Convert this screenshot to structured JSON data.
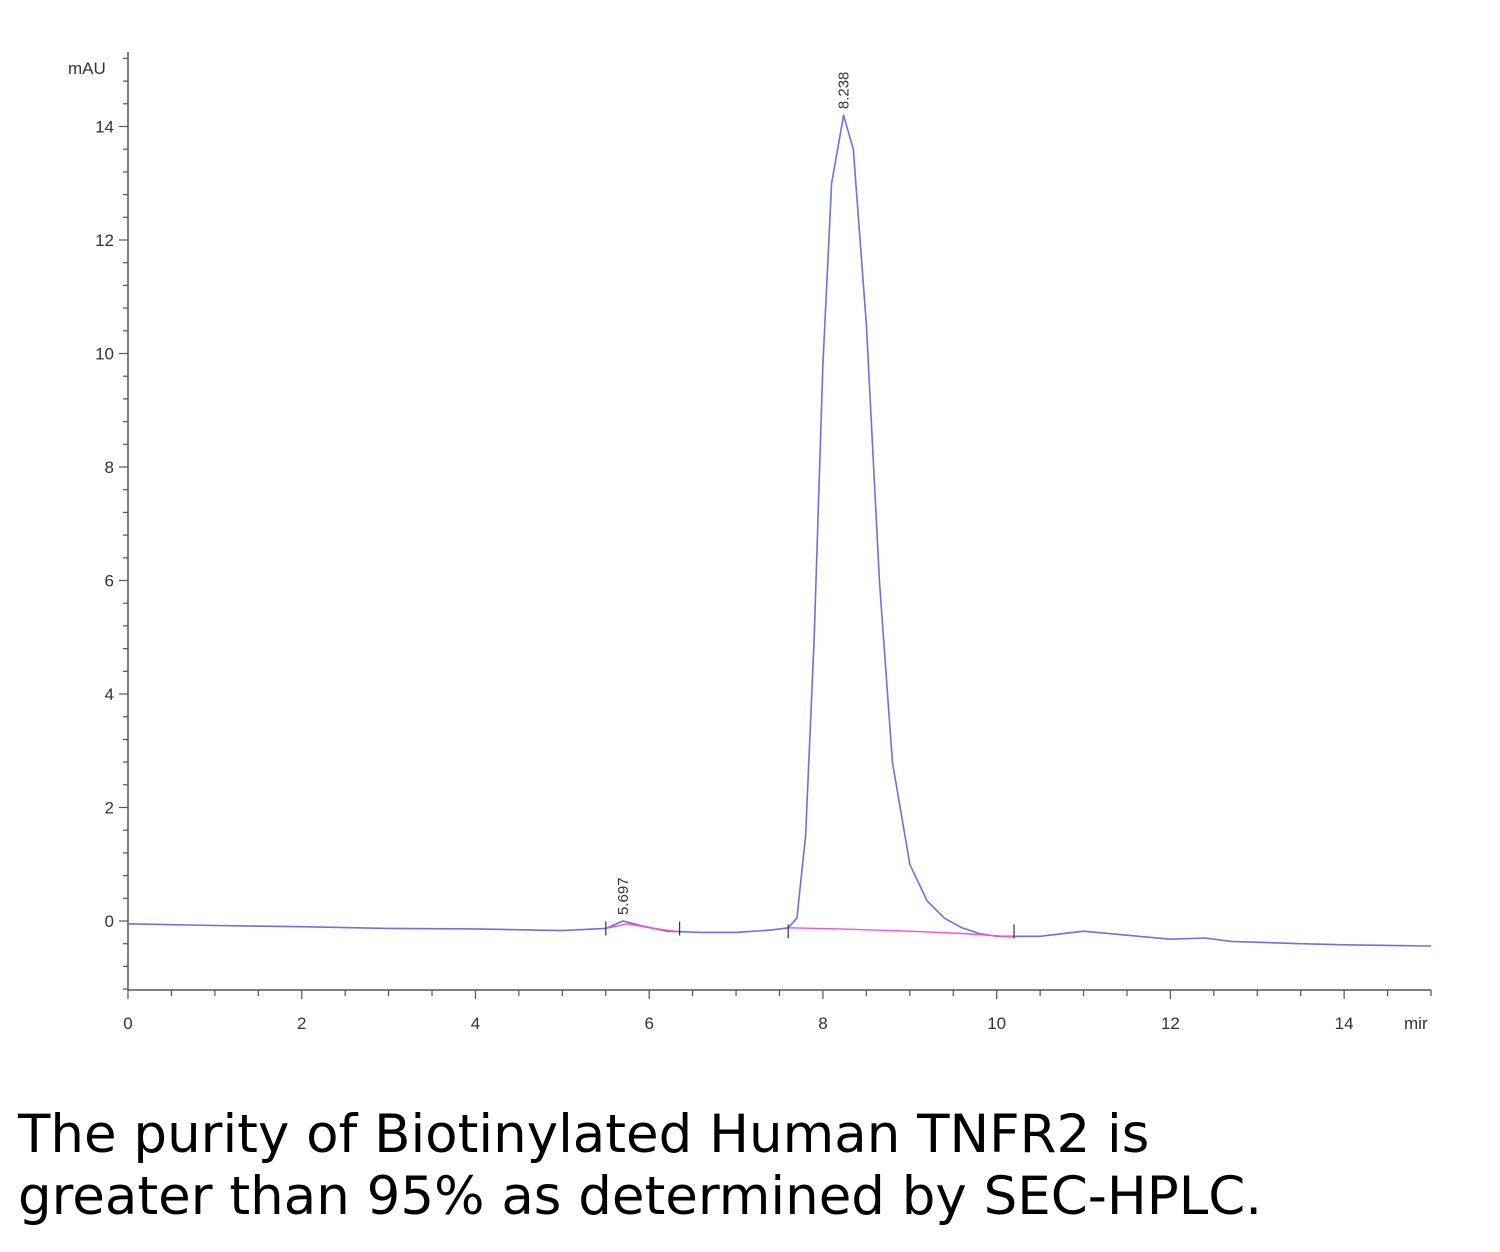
{
  "chart_data": {
    "type": "line",
    "y_unit_label": "mAU",
    "x_unit_label": "mir",
    "xlim": [
      0,
      15
    ],
    "ylim": [
      -1.2,
      15.2
    ],
    "x_ticks": [
      "0",
      "2",
      "4",
      "6",
      "8",
      "10",
      "12",
      "14"
    ],
    "y_ticks": [
      "0",
      "2",
      "4",
      "6",
      "8",
      "10",
      "12",
      "14"
    ],
    "grid": false,
    "legend": "none",
    "series": [
      {
        "color": "#6f6fe6",
        "points": [
          [
            0.0,
            -0.05
          ],
          [
            1.0,
            -0.08
          ],
          [
            2.0,
            -0.1
          ],
          [
            3.0,
            -0.13
          ],
          [
            4.0,
            -0.14
          ],
          [
            5.0,
            -0.17
          ],
          [
            5.5,
            -0.13
          ],
          [
            5.7,
            0.0
          ],
          [
            5.9,
            -0.08
          ],
          [
            6.2,
            -0.18
          ],
          [
            6.6,
            -0.2
          ],
          [
            7.0,
            -0.2
          ],
          [
            7.4,
            -0.16
          ],
          [
            7.6,
            -0.12
          ],
          [
            7.7,
            0.05
          ],
          [
            7.8,
            1.5
          ],
          [
            7.9,
            5.0
          ],
          [
            8.0,
            9.8
          ],
          [
            8.1,
            13.0
          ],
          [
            8.238,
            14.2
          ],
          [
            8.35,
            13.6
          ],
          [
            8.5,
            10.5
          ],
          [
            8.65,
            6.0
          ],
          [
            8.8,
            2.8
          ],
          [
            9.0,
            1.0
          ],
          [
            9.2,
            0.35
          ],
          [
            9.4,
            0.05
          ],
          [
            9.6,
            -0.12
          ],
          [
            9.8,
            -0.22
          ],
          [
            10.0,
            -0.27
          ],
          [
            10.5,
            -0.27
          ],
          [
            11.0,
            -0.18
          ],
          [
            11.5,
            -0.25
          ],
          [
            12.0,
            -0.32
          ],
          [
            12.4,
            -0.3
          ],
          [
            12.7,
            -0.36
          ],
          [
            13.5,
            -0.4
          ],
          [
            14.0,
            -0.42
          ],
          [
            15.0,
            -0.44
          ]
        ]
      },
      {
        "color": "#ff4fd8",
        "points": [
          [
            5.5,
            -0.13
          ],
          [
            5.75,
            -0.05
          ],
          [
            6.0,
            -0.12
          ],
          [
            6.3,
            -0.18
          ]
        ]
      },
      {
        "color": "#ff4fd8",
        "points": [
          [
            7.6,
            -0.12
          ],
          [
            8.2,
            -0.14
          ],
          [
            9.0,
            -0.18
          ],
          [
            9.6,
            -0.22
          ],
          [
            10.2,
            -0.28
          ]
        ]
      }
    ],
    "peak_labels": [
      {
        "x": 5.697,
        "y": 0.0,
        "text": "5.697"
      },
      {
        "x": 8.238,
        "y": 14.2,
        "text": "8.238"
      }
    ],
    "integration_marks": [
      5.5,
      6.35,
      7.6,
      10.2
    ]
  },
  "caption": {
    "line1": "The purity of Biotinylated Human TNFR2 is",
    "line2": "greater than 95% as determined by SEC-HPLC."
  }
}
